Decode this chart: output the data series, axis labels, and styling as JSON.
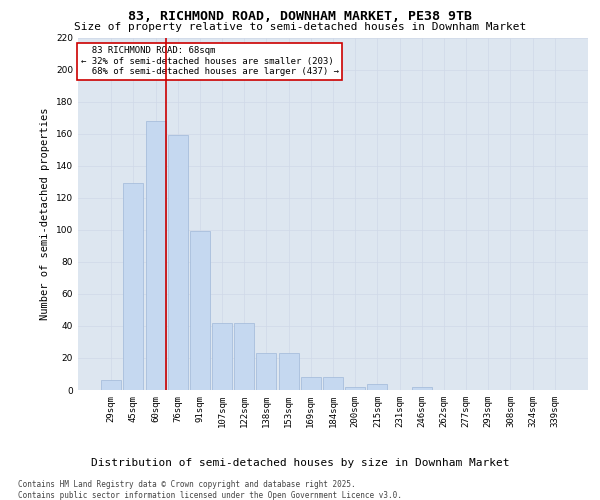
{
  "title": "83, RICHMOND ROAD, DOWNHAM MARKET, PE38 9TB",
  "subtitle": "Size of property relative to semi-detached houses in Downham Market",
  "xlabel": "Distribution of semi-detached houses by size in Downham Market",
  "ylabel": "Number of semi-detached properties",
  "categories": [
    "29sqm",
    "45sqm",
    "60sqm",
    "76sqm",
    "91sqm",
    "107sqm",
    "122sqm",
    "138sqm",
    "153sqm",
    "169sqm",
    "184sqm",
    "200sqm",
    "215sqm",
    "231sqm",
    "246sqm",
    "262sqm",
    "277sqm",
    "293sqm",
    "308sqm",
    "324sqm",
    "339sqm"
  ],
  "values": [
    6,
    129,
    168,
    159,
    99,
    42,
    42,
    23,
    23,
    8,
    8,
    2,
    4,
    0,
    2,
    0,
    0,
    0,
    0,
    0,
    0
  ],
  "bar_color": "#c5d8f0",
  "bar_edge_color": "#a0b8d8",
  "grid_color": "#d0d8e8",
  "ax_bg_color": "#dde6f0",
  "background_color": "#ffffff",
  "property_label": "83 RICHMOND ROAD: 68sqm",
  "pct_smaller": 32,
  "count_smaller": 203,
  "pct_larger": 68,
  "count_larger": 437,
  "vline_color": "#cc0000",
  "vline_bin_index": 2,
  "annotation_box_color": "#cc0000",
  "footer": "Contains HM Land Registry data © Crown copyright and database right 2025.\nContains public sector information licensed under the Open Government Licence v3.0.",
  "ylim": [
    0,
    220
  ],
  "yticks": [
    0,
    20,
    40,
    60,
    80,
    100,
    120,
    140,
    160,
    180,
    200,
    220
  ],
  "title_fontsize": 9.5,
  "subtitle_fontsize": 8,
  "xlabel_fontsize": 8,
  "ylabel_fontsize": 7.5,
  "tick_fontsize": 6.5,
  "annot_fontsize": 6.5,
  "footer_fontsize": 5.5
}
